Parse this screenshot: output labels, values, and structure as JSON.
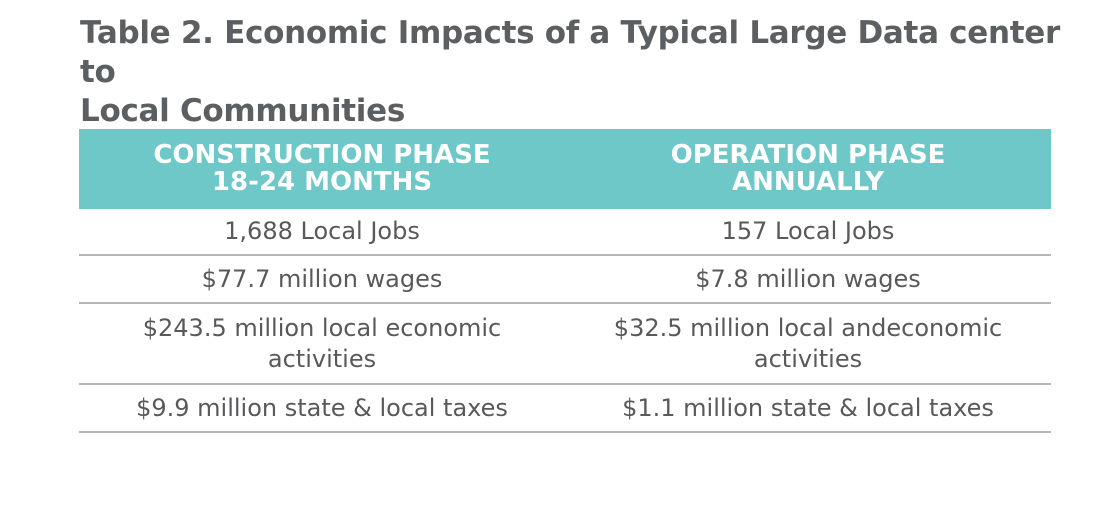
{
  "title": {
    "line1": "Table 2. Economic Impacts of a Typical Large Data center to",
    "line2": "Local Communities"
  },
  "table": {
    "headers": [
      {
        "line1": "CONSTRUCTION PHASE",
        "line2": "18-24 MONTHS"
      },
      {
        "line1": "OPERATION PHASE",
        "line2": "ANNUALLY"
      }
    ],
    "rows": [
      {
        "construction": {
          "line1": "1,688 Local Jobs",
          "line2": ""
        },
        "operation": {
          "line1": "157 Local Jobs",
          "line2": ""
        }
      },
      {
        "construction": {
          "line1": "$77.7 million wages",
          "line2": ""
        },
        "operation": {
          "line1": "$7.8 million wages",
          "line2": ""
        }
      },
      {
        "construction": {
          "line1": "$243.5 million local economic",
          "line2": "activities"
        },
        "operation": {
          "line1": "$32.5 million local andeconomic",
          "line2": "activities"
        }
      },
      {
        "construction": {
          "line1": "$9.9 million state & local taxes",
          "line2": ""
        },
        "operation": {
          "line1": "$1.1 million state & local taxes",
          "line2": ""
        }
      }
    ]
  },
  "colors": {
    "header_background": "#6fc8c8",
    "header_text": "#ffffff",
    "title_text": "#5b5f61",
    "body_text": "#58595b",
    "row_divider": "#b4b6b8"
  }
}
